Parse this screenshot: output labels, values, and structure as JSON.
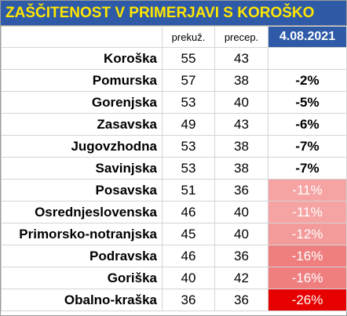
{
  "header": {
    "title": "ZAŠČITENOST V PRIMERJAVI S KOROŠKO"
  },
  "table": {
    "columns": [
      "prekuž.",
      "precep.",
      "4.08.2021"
    ],
    "rows": [
      {
        "region": "Koroška",
        "prekuz": "55",
        "precep": "43"
      },
      {
        "region": "Pomurska",
        "prekuz": "57",
        "precep": "38",
        "change": "-2%"
      },
      {
        "region": "Gorenjska",
        "prekuz": "53",
        "precep": "40",
        "change": "-5%"
      },
      {
        "region": "Zasavska",
        "prekuz": "49",
        "precep": "43",
        "change": "-6%"
      },
      {
        "region": "Jugovzhodna",
        "prekuz": "53",
        "precep": "38",
        "change": "-7%"
      },
      {
        "region": "Savinjska",
        "prekuz": "53",
        "precep": "38",
        "change": "-7%"
      },
      {
        "region": "Posavska",
        "prekuz": "51",
        "precep": "36",
        "change": "-11%",
        "fill": "#f6a3a3"
      },
      {
        "region": "Osrednjeslovenska",
        "prekuz": "46",
        "precep": "40",
        "change": "-11%",
        "fill": "#f6a3a3"
      },
      {
        "region": "Primorsko-notranjska",
        "prekuz": "45",
        "precep": "40",
        "change": "-12%",
        "fill": "#f39a9a"
      },
      {
        "region": "Podravska",
        "prekuz": "46",
        "precep": "36",
        "change": "-16%",
        "fill": "#ef7f7f"
      },
      {
        "region": "Goriška",
        "prekuz": "40",
        "precep": "42",
        "change": "-16%",
        "fill": "#ef7f7f"
      },
      {
        "region": "Obalno-kraška",
        "prekuz": "36",
        "precep": "36",
        "change": "-26%",
        "fill": "#e60000"
      }
    ]
  }
}
